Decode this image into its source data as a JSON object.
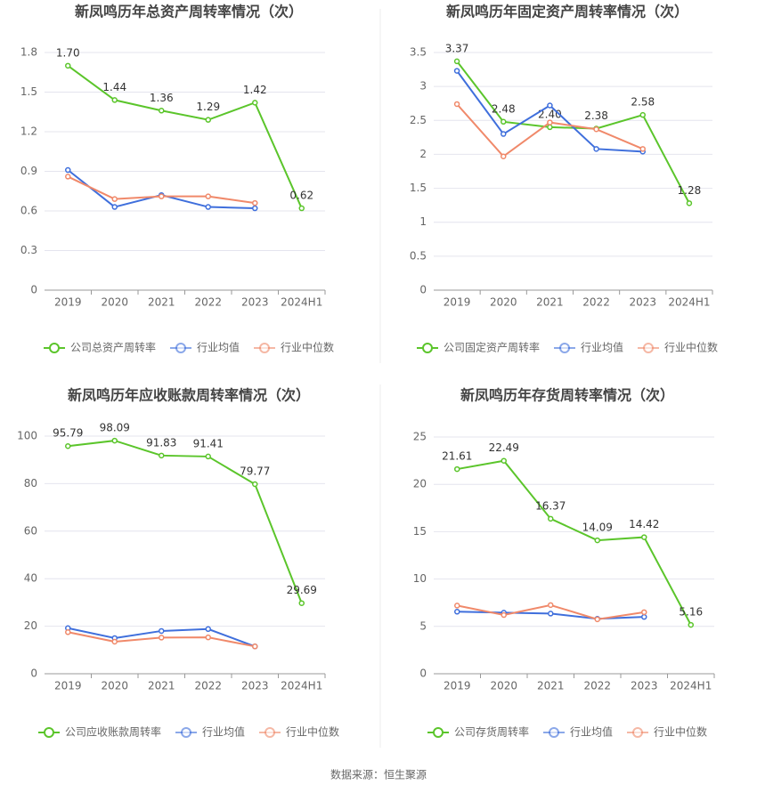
{
  "chart_data": [
    {
      "type": "line",
      "title": "新凤鸣历年总资产周转率情况（次）",
      "categories": [
        "2019",
        "2020",
        "2021",
        "2022",
        "2023",
        "2024H1"
      ],
      "series": [
        {
          "name": "公司总资产周转率",
          "color": "#5bc52b",
          "values": [
            1.7,
            1.44,
            1.36,
            1.29,
            1.42,
            0.62
          ],
          "value_labels": [
            "1.70",
            "1.44",
            "1.36",
            "1.29",
            "1.42",
            "0.62"
          ]
        },
        {
          "name": "行业均值",
          "color": "#3f6fdc",
          "values": [
            0.91,
            0.63,
            0.72,
            0.63,
            0.62,
            null
          ]
        },
        {
          "name": "行业中位数",
          "color": "#f0896a",
          "values": [
            0.86,
            0.69,
            0.71,
            0.71,
            0.66,
            null
          ]
        }
      ],
      "ylim": [
        0,
        1.8
      ],
      "yticks": [
        0,
        0.3,
        0.6,
        0.9,
        1.2,
        1.5,
        1.8
      ],
      "grid": true,
      "legend": "bottom"
    },
    {
      "type": "line",
      "title": "新凤鸣历年固定资产周转率情况（次）",
      "categories": [
        "2019",
        "2020",
        "2021",
        "2022",
        "2023",
        "2024H1"
      ],
      "series": [
        {
          "name": "公司固定资产周转率",
          "color": "#5bc52b",
          "values": [
            3.37,
            2.48,
            2.4,
            2.38,
            2.58,
            1.28
          ],
          "value_labels": [
            "3.37",
            "2.48",
            "2.40",
            "2.38",
            "2.58",
            "1.28"
          ]
        },
        {
          "name": "行业均值",
          "color": "#3f6fdc",
          "values": [
            3.23,
            2.3,
            2.72,
            2.08,
            2.04,
            null
          ]
        },
        {
          "name": "行业中位数",
          "color": "#f0896a",
          "values": [
            2.74,
            1.97,
            2.47,
            2.37,
            2.08,
            null
          ]
        }
      ],
      "ylim": [
        0,
        3.5
      ],
      "yticks": [
        0,
        0.5,
        1,
        1.5,
        2,
        2.5,
        3,
        3.5
      ],
      "grid": true,
      "legend": "bottom"
    },
    {
      "type": "line",
      "title": "新凤鸣历年应收账款周转率情况（次）",
      "categories": [
        "2019",
        "2020",
        "2021",
        "2022",
        "2023",
        "2024H1"
      ],
      "series": [
        {
          "name": "公司应收账款周转率",
          "color": "#5bc52b",
          "values": [
            95.79,
            98.09,
            91.83,
            91.41,
            79.77,
            29.69
          ]
        },
        {
          "name": "行业均值",
          "color": "#3f6fdc",
          "values": [
            19.2,
            15.0,
            18.0,
            18.8,
            11.5,
            null
          ]
        },
        {
          "name": "行业中位数",
          "color": "#f0896a",
          "values": [
            17.5,
            13.5,
            15.2,
            15.3,
            11.5,
            null
          ]
        }
      ],
      "ylim": [
        0,
        100
      ],
      "yticks": [
        0,
        20,
        40,
        60,
        80,
        100
      ],
      "grid": true,
      "legend": "bottom"
    },
    {
      "type": "line",
      "title": "新凤鸣历年存货周转率情况（次）",
      "categories": [
        "2019",
        "2020",
        "2021",
        "2022",
        "2023",
        "2024H1"
      ],
      "series": [
        {
          "name": "公司存货周转率",
          "color": "#5bc52b",
          "values": [
            21.61,
            22.49,
            16.37,
            14.09,
            14.42,
            5.16
          ]
        },
        {
          "name": "行业均值",
          "color": "#3f6fdc",
          "values": [
            6.55,
            6.45,
            6.35,
            5.8,
            6.0,
            null
          ]
        },
        {
          "name": "行业中位数",
          "color": "#f0896a",
          "values": [
            7.2,
            6.2,
            7.25,
            5.75,
            6.5,
            null
          ]
        }
      ],
      "ylim": [
        0,
        25
      ],
      "yticks": [
        0,
        5,
        10,
        15,
        20,
        25
      ],
      "grid": true,
      "legend": "bottom"
    }
  ],
  "source": "数据来源：恒生聚源"
}
